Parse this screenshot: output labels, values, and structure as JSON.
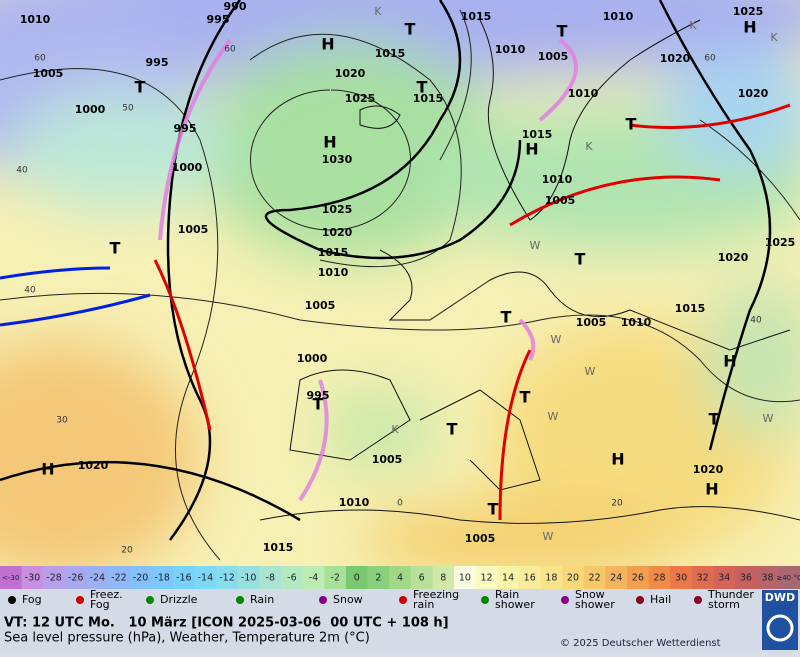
{
  "map": {
    "pressure_labels": [
      "1010",
      "995",
      "990",
      "1015",
      "1010",
      "1025",
      "1005",
      "995",
      "1000",
      "1020",
      "1015",
      "1015",
      "1010",
      "1005",
      "1010",
      "1020",
      "1020",
      "1025",
      "1030",
      "995",
      "1000",
      "1005",
      "1025",
      "1020",
      "1015",
      "1010",
      "1005",
      "1015",
      "1010",
      "1005",
      "1025",
      "1020",
      "1015",
      "1005",
      "1010",
      "1000",
      "995",
      "1005",
      "1010",
      "1020",
      "1020",
      "1015",
      "1005"
    ],
    "isotherm_labels": [
      "60",
      "60",
      "50",
      "40",
      "40",
      "30",
      "20",
      "0",
      "20",
      "60",
      "40"
    ],
    "centers": [
      "H",
      "H",
      "H",
      "H",
      "H",
      "H",
      "H",
      "H",
      "T",
      "T",
      "T",
      "T",
      "T",
      "T",
      "T",
      "T",
      "T",
      "T",
      "T",
      "T",
      "T",
      "K",
      "K",
      "K",
      "K",
      "K",
      "W",
      "W",
      "W",
      "W",
      "W",
      "W"
    ]
  },
  "color_scale": {
    "labels": [
      "<-30",
      "-30",
      "-28",
      "-26",
      "-24",
      "-22",
      "-20",
      "-18",
      "-16",
      "-14",
      "-12",
      "-10",
      "-8",
      "-6",
      "-4",
      "-2",
      "0",
      "2",
      "4",
      "6",
      "8",
      "10",
      "12",
      "14",
      "16",
      "18",
      "20",
      "22",
      "24",
      "26",
      "28",
      "30",
      "32",
      "34",
      "36",
      "38",
      "≥40 °C"
    ],
    "colors": [
      "#c070d0",
      "#c890e0",
      "#b8a0e8",
      "#a8a8f0",
      "#9cb0f4",
      "#90b8f8",
      "#84c0fa",
      "#7cc8fc",
      "#78d0fc",
      "#7cd8f4",
      "#88dcec",
      "#98e0e0",
      "#a8e4d0",
      "#b4e8c0",
      "#bcecb0",
      "#a8e098",
      "#78c870",
      "#88d07c",
      "#a0d888",
      "#b8e098",
      "#d0e8a8",
      "#fafae0",
      "#fafac0",
      "#f8f4a8",
      "#f8ec98",
      "#f8e488",
      "#f8d878",
      "#f6c868",
      "#f4b45c",
      "#f2a050",
      "#f08c48",
      "#ec7848",
      "#e06c50",
      "#d46458",
      "#c86060",
      "#b86468",
      "#a86870"
    ]
  },
  "weather_legend": [
    "Fog",
    "Freez. Fog",
    "Drizzle",
    "Rain",
    "Snow",
    "Freezing rain",
    "Rain shower",
    "Snow shower",
    "Hail",
    "Thunder storm"
  ],
  "footer": {
    "valid_time": "VT: 12 UTC Mo.   10 März [ICON 2025-03-06  00 UTC + 108 h]",
    "description": "Sea level pressure (hPa), Weather, Temperature 2m (°C)",
    "copyright": "© 2025 Deutscher Wetterdienst",
    "logo": "DWD"
  }
}
